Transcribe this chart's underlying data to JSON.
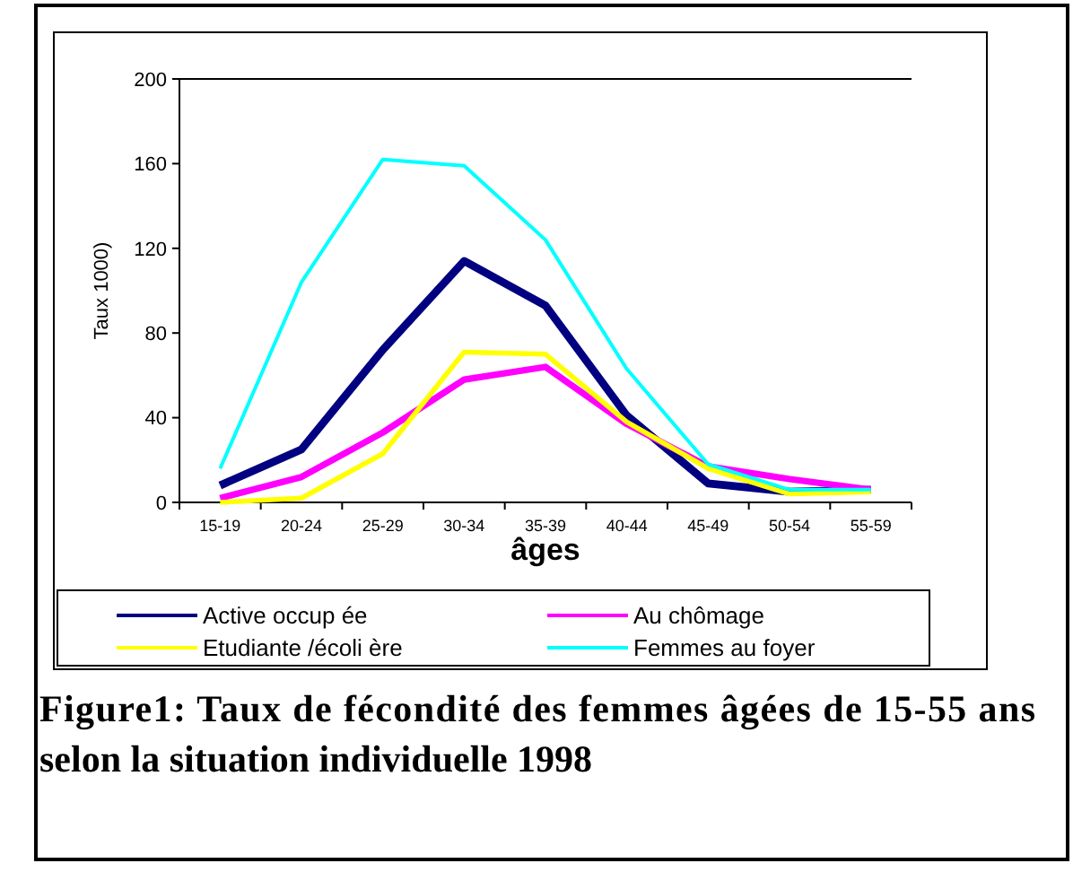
{
  "chart_data": {
    "type": "line",
    "title": "Figure1: Taux de fécondité des femmes âgées de 15-55 ans selon la situation individuelle 1998",
    "xlabel": "âges",
    "ylabel": "Taux      1000)",
    "categories": [
      "15-19",
      "20-24",
      "25-29",
      "30-34",
      "35-39",
      "40-44",
      "45-49",
      "50-54",
      "55-59"
    ],
    "ylim": [
      0,
      200
    ],
    "yticks": [
      0,
      40,
      80,
      120,
      160,
      200
    ],
    "grid": false,
    "legend": "bottom",
    "marker": "none",
    "line_style": "solid",
    "series": [
      {
        "name": "Active occup ée",
        "color": "#000080",
        "values": [
          8,
          25,
          72,
          114,
          93,
          41,
          9,
          5,
          6
        ]
      },
      {
        "name": "Au chômage",
        "color": "#ff00ff",
        "values": [
          2,
          12,
          33,
          58,
          64,
          37,
          17,
          11,
          6
        ]
      },
      {
        "name": "Etudiante /écoli ère",
        "color": "#ffff00",
        "values": [
          0,
          2,
          23,
          71,
          70,
          38,
          16,
          4,
          5
        ]
      },
      {
        "name": "Femmes au foyer",
        "color": "#00ffff",
        "values": [
          16,
          104,
          162,
          159,
          124,
          63,
          18,
          6,
          6
        ]
      }
    ]
  }
}
